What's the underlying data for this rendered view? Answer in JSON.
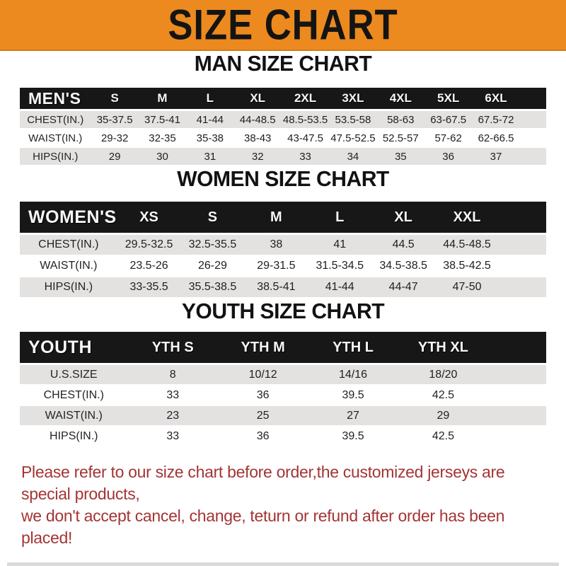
{
  "banner": {
    "title": "SIZE CHART"
  },
  "colors": {
    "banner_bg": "#EC8A1F",
    "table_header_bg": "#171717",
    "row_alt_bg": "#E4E2E1",
    "note_color": "#A43434"
  },
  "sections": [
    {
      "heading": "MAN SIZE CHART",
      "table": {
        "label": "MEN'S",
        "columns": [
          "S",
          "M",
          "L",
          "XL",
          "2XL",
          "3XL",
          "4XL",
          "5XL",
          "6XL"
        ],
        "rows": [
          {
            "label": "CHEST(IN.)",
            "values": [
              "35-37.5",
              "37.5-41",
              "41-44",
              "44-48.5",
              "48.5-53.5",
              "53.5-58",
              "58-63",
              "63-67.5",
              "67.5-72"
            ]
          },
          {
            "label": "WAIST(IN.)",
            "values": [
              "29-32",
              "32-35",
              "35-38",
              "38-43",
              "43-47.5",
              "47.5-52.5",
              "52.5-57",
              "57-62",
              "62-66.5"
            ]
          },
          {
            "label": "HIPS(IN.)",
            "values": [
              "29",
              "30",
              "31",
              "32",
              "33",
              "34",
              "35",
              "36",
              "37"
            ]
          }
        ]
      }
    },
    {
      "heading": "WOMEN SIZE CHART",
      "table": {
        "label": "WOMEN'S",
        "columns": [
          "XS",
          "S",
          "M",
          "L",
          "XL",
          "XXL"
        ],
        "rows": [
          {
            "label": "CHEST(IN.)",
            "values": [
              "29.5-32.5",
              "32.5-35.5",
              "38",
              "41",
              "44.5",
              "44.5-48.5"
            ]
          },
          {
            "label": "WAIST(IN.)",
            "values": [
              "23.5-26",
              "26-29",
              "29-31.5",
              "31.5-34.5",
              "34.5-38.5",
              "38.5-42.5"
            ]
          },
          {
            "label": "HIPS(IN.)",
            "values": [
              "33-35.5",
              "35.5-38.5",
              "38.5-41",
              "41-44",
              "44-47",
              "47-50"
            ]
          }
        ]
      }
    },
    {
      "heading": "YOUTH SIZE CHART",
      "table": {
        "label": "YOUTH",
        "columns": [
          "YTH S",
          "YTH M",
          "YTH L",
          "YTH XL"
        ],
        "rows": [
          {
            "label": "U.S.SIZE",
            "values": [
              "8",
              "10/12",
              "14/16",
              "18/20"
            ]
          },
          {
            "label": "CHEST(IN.)",
            "values": [
              "33",
              "36",
              "39.5",
              "42.5"
            ]
          },
          {
            "label": "WAIST(IN.)",
            "values": [
              "23",
              "25",
              "27",
              "29"
            ]
          },
          {
            "label": "HIPS(IN.)",
            "values": [
              "33",
              "36",
              "39.5",
              "42.5"
            ]
          }
        ]
      }
    }
  ],
  "note": {
    "line1": "Please refer to our size chart before order,the customized jerseys are special products,",
    "line2": "we don't accept cancel, change, teturn or refund after order has been placed!"
  }
}
